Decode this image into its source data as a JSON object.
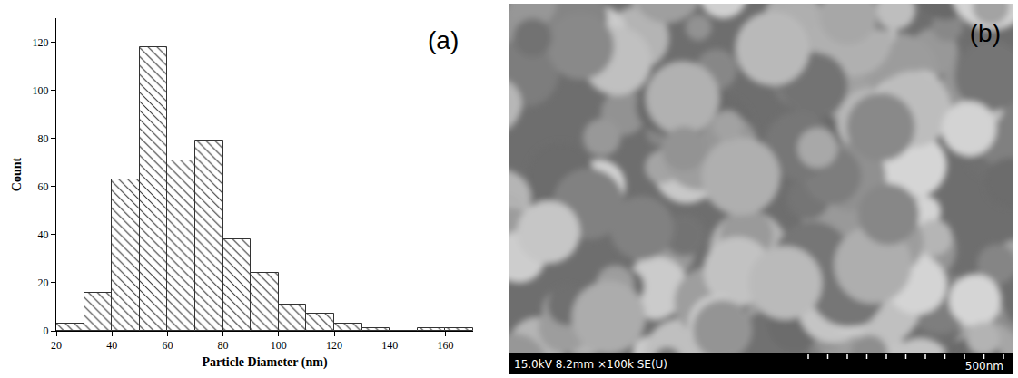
{
  "chart_data": {
    "type": "histogram",
    "panel_label": "(a)",
    "x_label": "Particle Diameter (nm)",
    "y_label": "Count",
    "bins": [
      20,
      30,
      40,
      50,
      60,
      70,
      80,
      90,
      100,
      110,
      120,
      130,
      140,
      150,
      160,
      170
    ],
    "values": [
      3,
      16,
      63,
      118,
      71,
      79,
      38,
      24,
      11,
      7,
      3,
      1,
      0,
      1,
      1
    ],
    "color": "#333333",
    "xlim": [
      20,
      170
    ],
    "xticks": [
      20,
      40,
      60,
      80,
      100,
      120,
      140,
      160
    ],
    "ylim": [
      0,
      130
    ],
    "yticks": [
      0,
      20,
      40,
      60,
      80,
      100,
      120
    ],
    "grid": false
  },
  "image": {
    "panel_label": "(b)",
    "info_bar": "15.0kV 8.2mm ×100k SE(U)",
    "scale_label": "500nm"
  }
}
